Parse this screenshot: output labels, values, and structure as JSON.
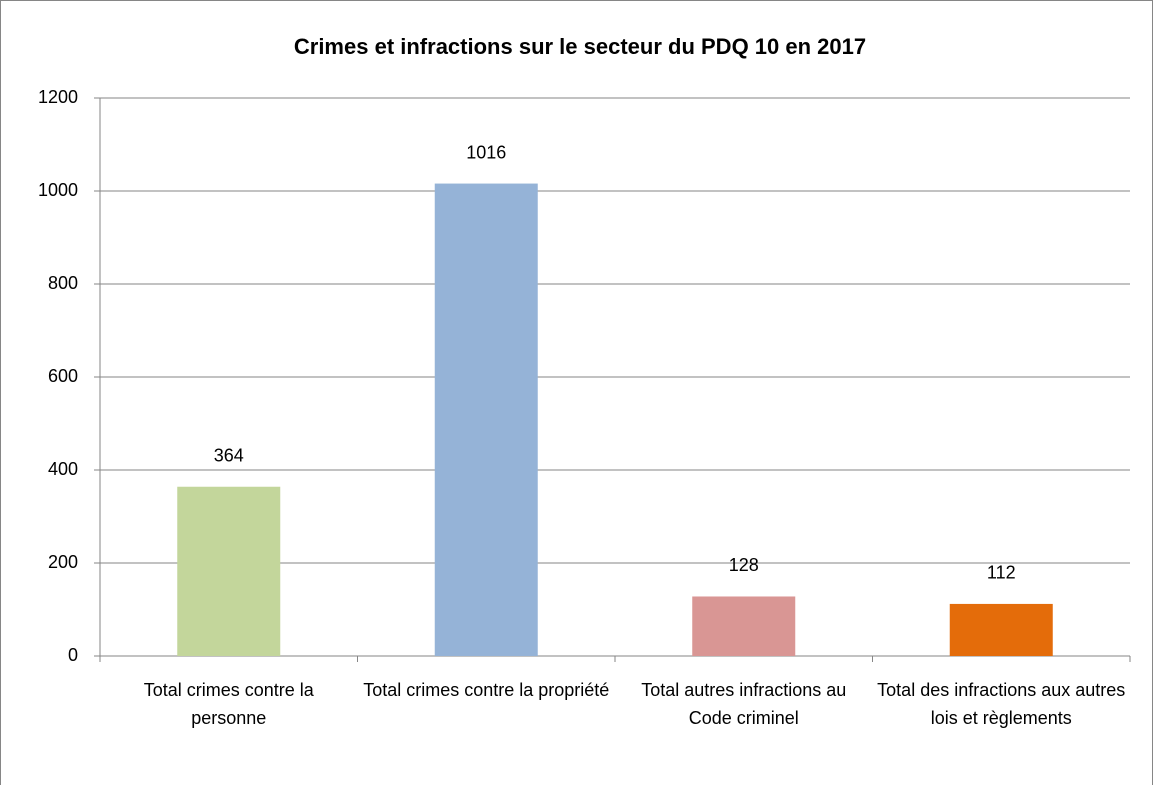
{
  "chart_data": {
    "type": "bar",
    "title": "Crimes et infractions sur le secteur du PDQ 10 en 2017",
    "categories": [
      "Total crimes contre la personne",
      "Total crimes contre la propriété",
      "Total autres infractions au Code criminel",
      "Total des infractions aux autres lois et règlements"
    ],
    "values": [
      364,
      1016,
      128,
      112
    ],
    "colors": [
      "#c3d69b",
      "#95b3d7",
      "#d99694",
      "#e46c0a"
    ],
    "ylim": [
      0,
      1200
    ],
    "yticks": [
      0,
      200,
      400,
      600,
      800,
      1000,
      1200
    ],
    "grid": true
  }
}
